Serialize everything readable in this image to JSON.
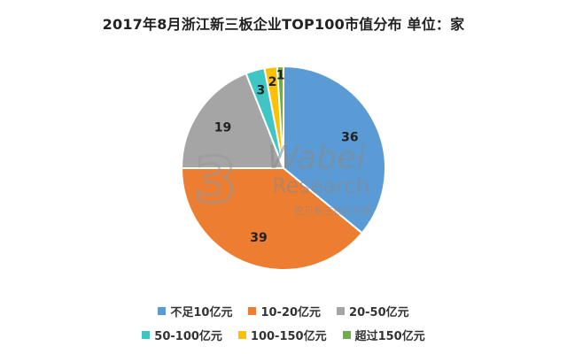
{
  "chart_data": {
    "type": "pie",
    "title": "2017年8月浙江新三板企业TOP100市值分布 单位：家",
    "categories": [
      "不足10亿元",
      "10-20亿元",
      "20-50亿元",
      "50-100亿元",
      "100-150亿元",
      "超过150亿元"
    ],
    "values": [
      36,
      39,
      19,
      3,
      2,
      1
    ],
    "colors": [
      "#5B9BD5",
      "#ED7D31",
      "#A5A5A5",
      "#3FC6C4",
      "#FFC000",
      "#70AD47"
    ],
    "legend_position": "bottom"
  },
  "watermark": {
    "line1": "Wabei",
    "line2": "Research",
    "line3": "挖贝新三板研究院",
    "logo_glyph": "3"
  }
}
